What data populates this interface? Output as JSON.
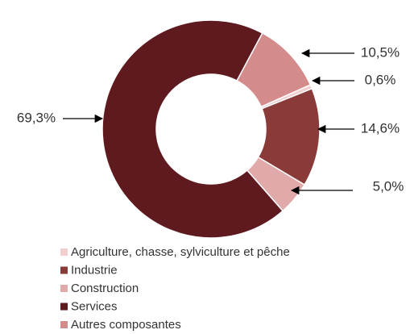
{
  "chart_data": {
    "type": "donut",
    "categories": [
      "Agriculture, chasse, sylviculture et pêche",
      "Industrie",
      "Construction",
      "Services",
      "Autres composantes"
    ],
    "values": [
      0.6,
      14.6,
      5.0,
      69.3,
      10.5
    ],
    "value_labels": [
      "0,6%",
      "14,6%",
      "5,0%",
      "69,3%",
      "10,5%"
    ],
    "colors": [
      "#f2cfcf",
      "#8b3a3a",
      "#e0aaaa",
      "#5e1a1e",
      "#d48b8b"
    ]
  }
}
